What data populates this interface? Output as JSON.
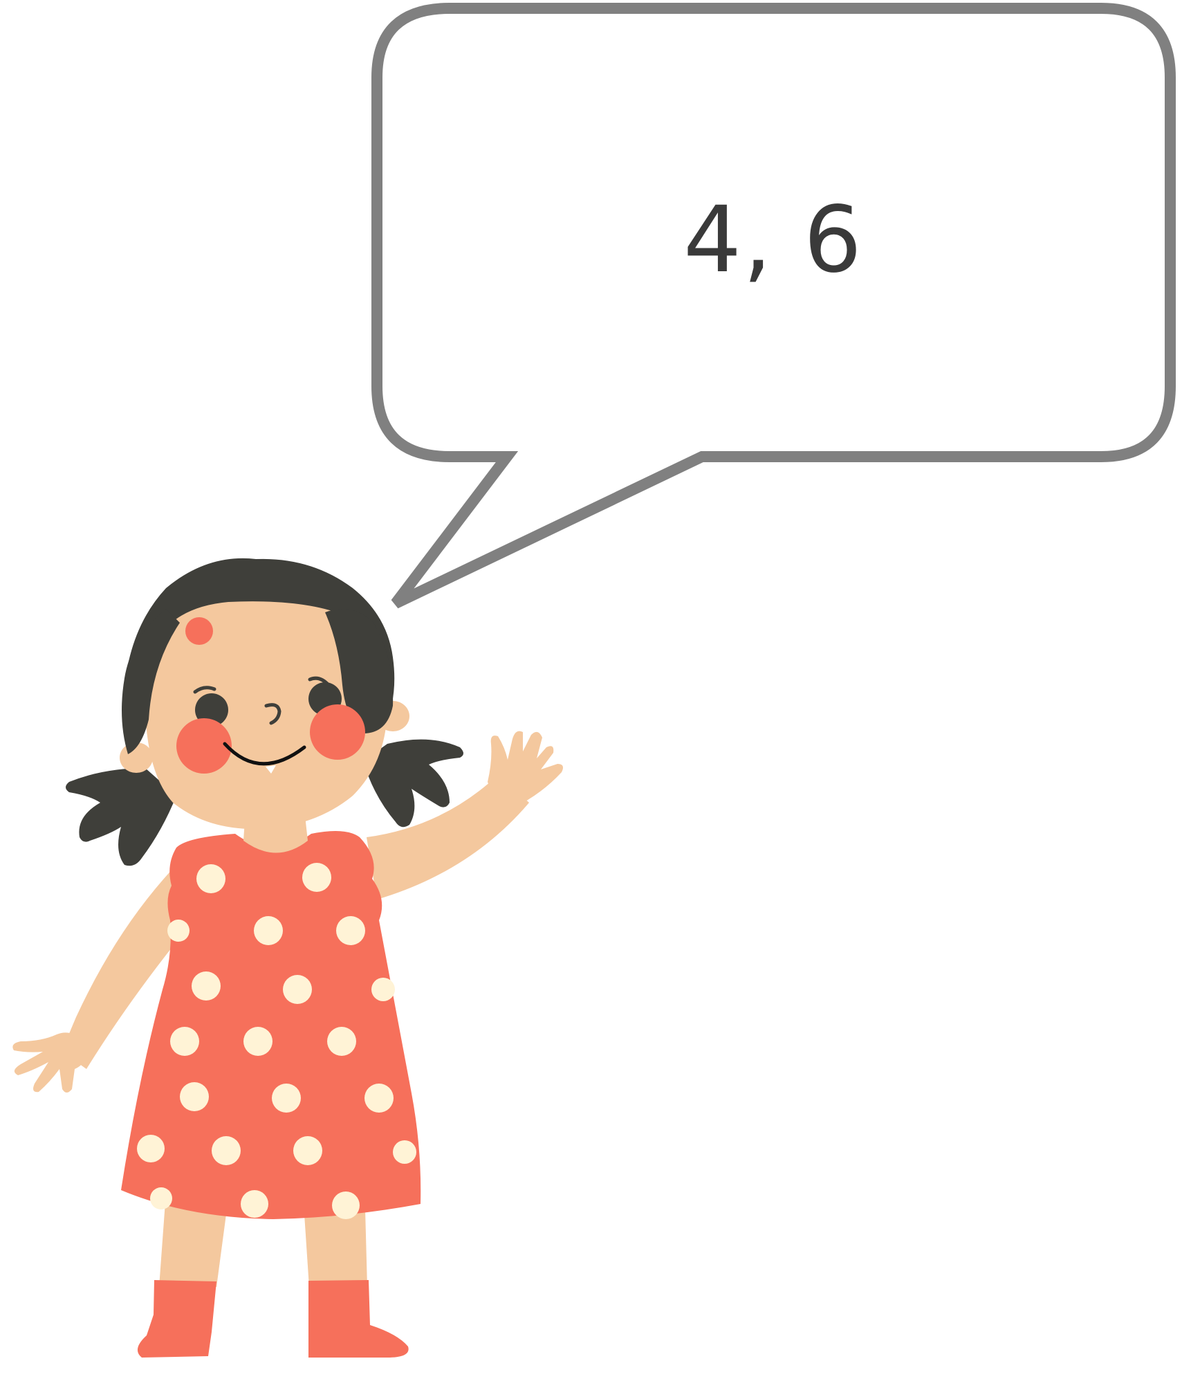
{
  "speech_bubble": {
    "text": "4, 6",
    "border_color": "#808080",
    "fill_color": "#ffffff",
    "text_color": "#3a3a3a"
  },
  "illustration": {
    "subject": "girl-character",
    "pose": "waving",
    "colors": {
      "skin": "#F4C89E",
      "hair": "#3F3F3A",
      "dress": "#F6705B",
      "dots": "#FFF3D6",
      "cheeks": "#F6705B",
      "boots": "#F6705B",
      "hair_clip": "#F6705B"
    }
  }
}
